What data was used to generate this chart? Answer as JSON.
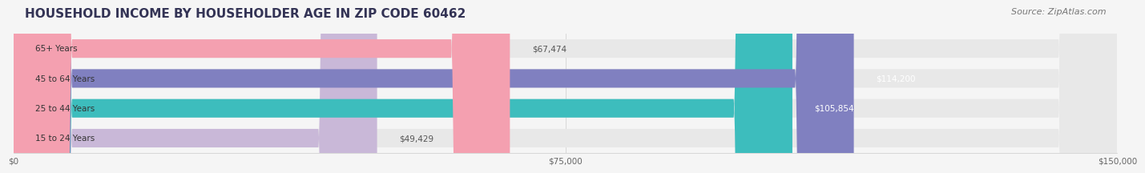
{
  "title": "HOUSEHOLD INCOME BY HOUSEHOLDER AGE IN ZIP CODE 60462",
  "source": "Source: ZipAtlas.com",
  "categories": [
    "15 to 24 Years",
    "25 to 44 Years",
    "45 to 64 Years",
    "65+ Years"
  ],
  "values": [
    49429,
    105854,
    114200,
    67474
  ],
  "bar_colors": [
    "#c9b8d8",
    "#3dbdbd",
    "#8080c0",
    "#f4a0b0"
  ],
  "bar_bg_color": "#e8e8e8",
  "value_labels": [
    "$49,429",
    "$105,854",
    "$114,200",
    "$67,474"
  ],
  "label_colors": [
    "#555555",
    "#ffffff",
    "#ffffff",
    "#555555"
  ],
  "xlim": [
    0,
    150000
  ],
  "xticks": [
    0,
    75000,
    150000
  ],
  "xtick_labels": [
    "$0",
    "$75,000",
    "$150,000"
  ],
  "title_fontsize": 11,
  "source_fontsize": 8,
  "background_color": "#f5f5f5",
  "title_color": "#333355",
  "source_color": "#777777"
}
